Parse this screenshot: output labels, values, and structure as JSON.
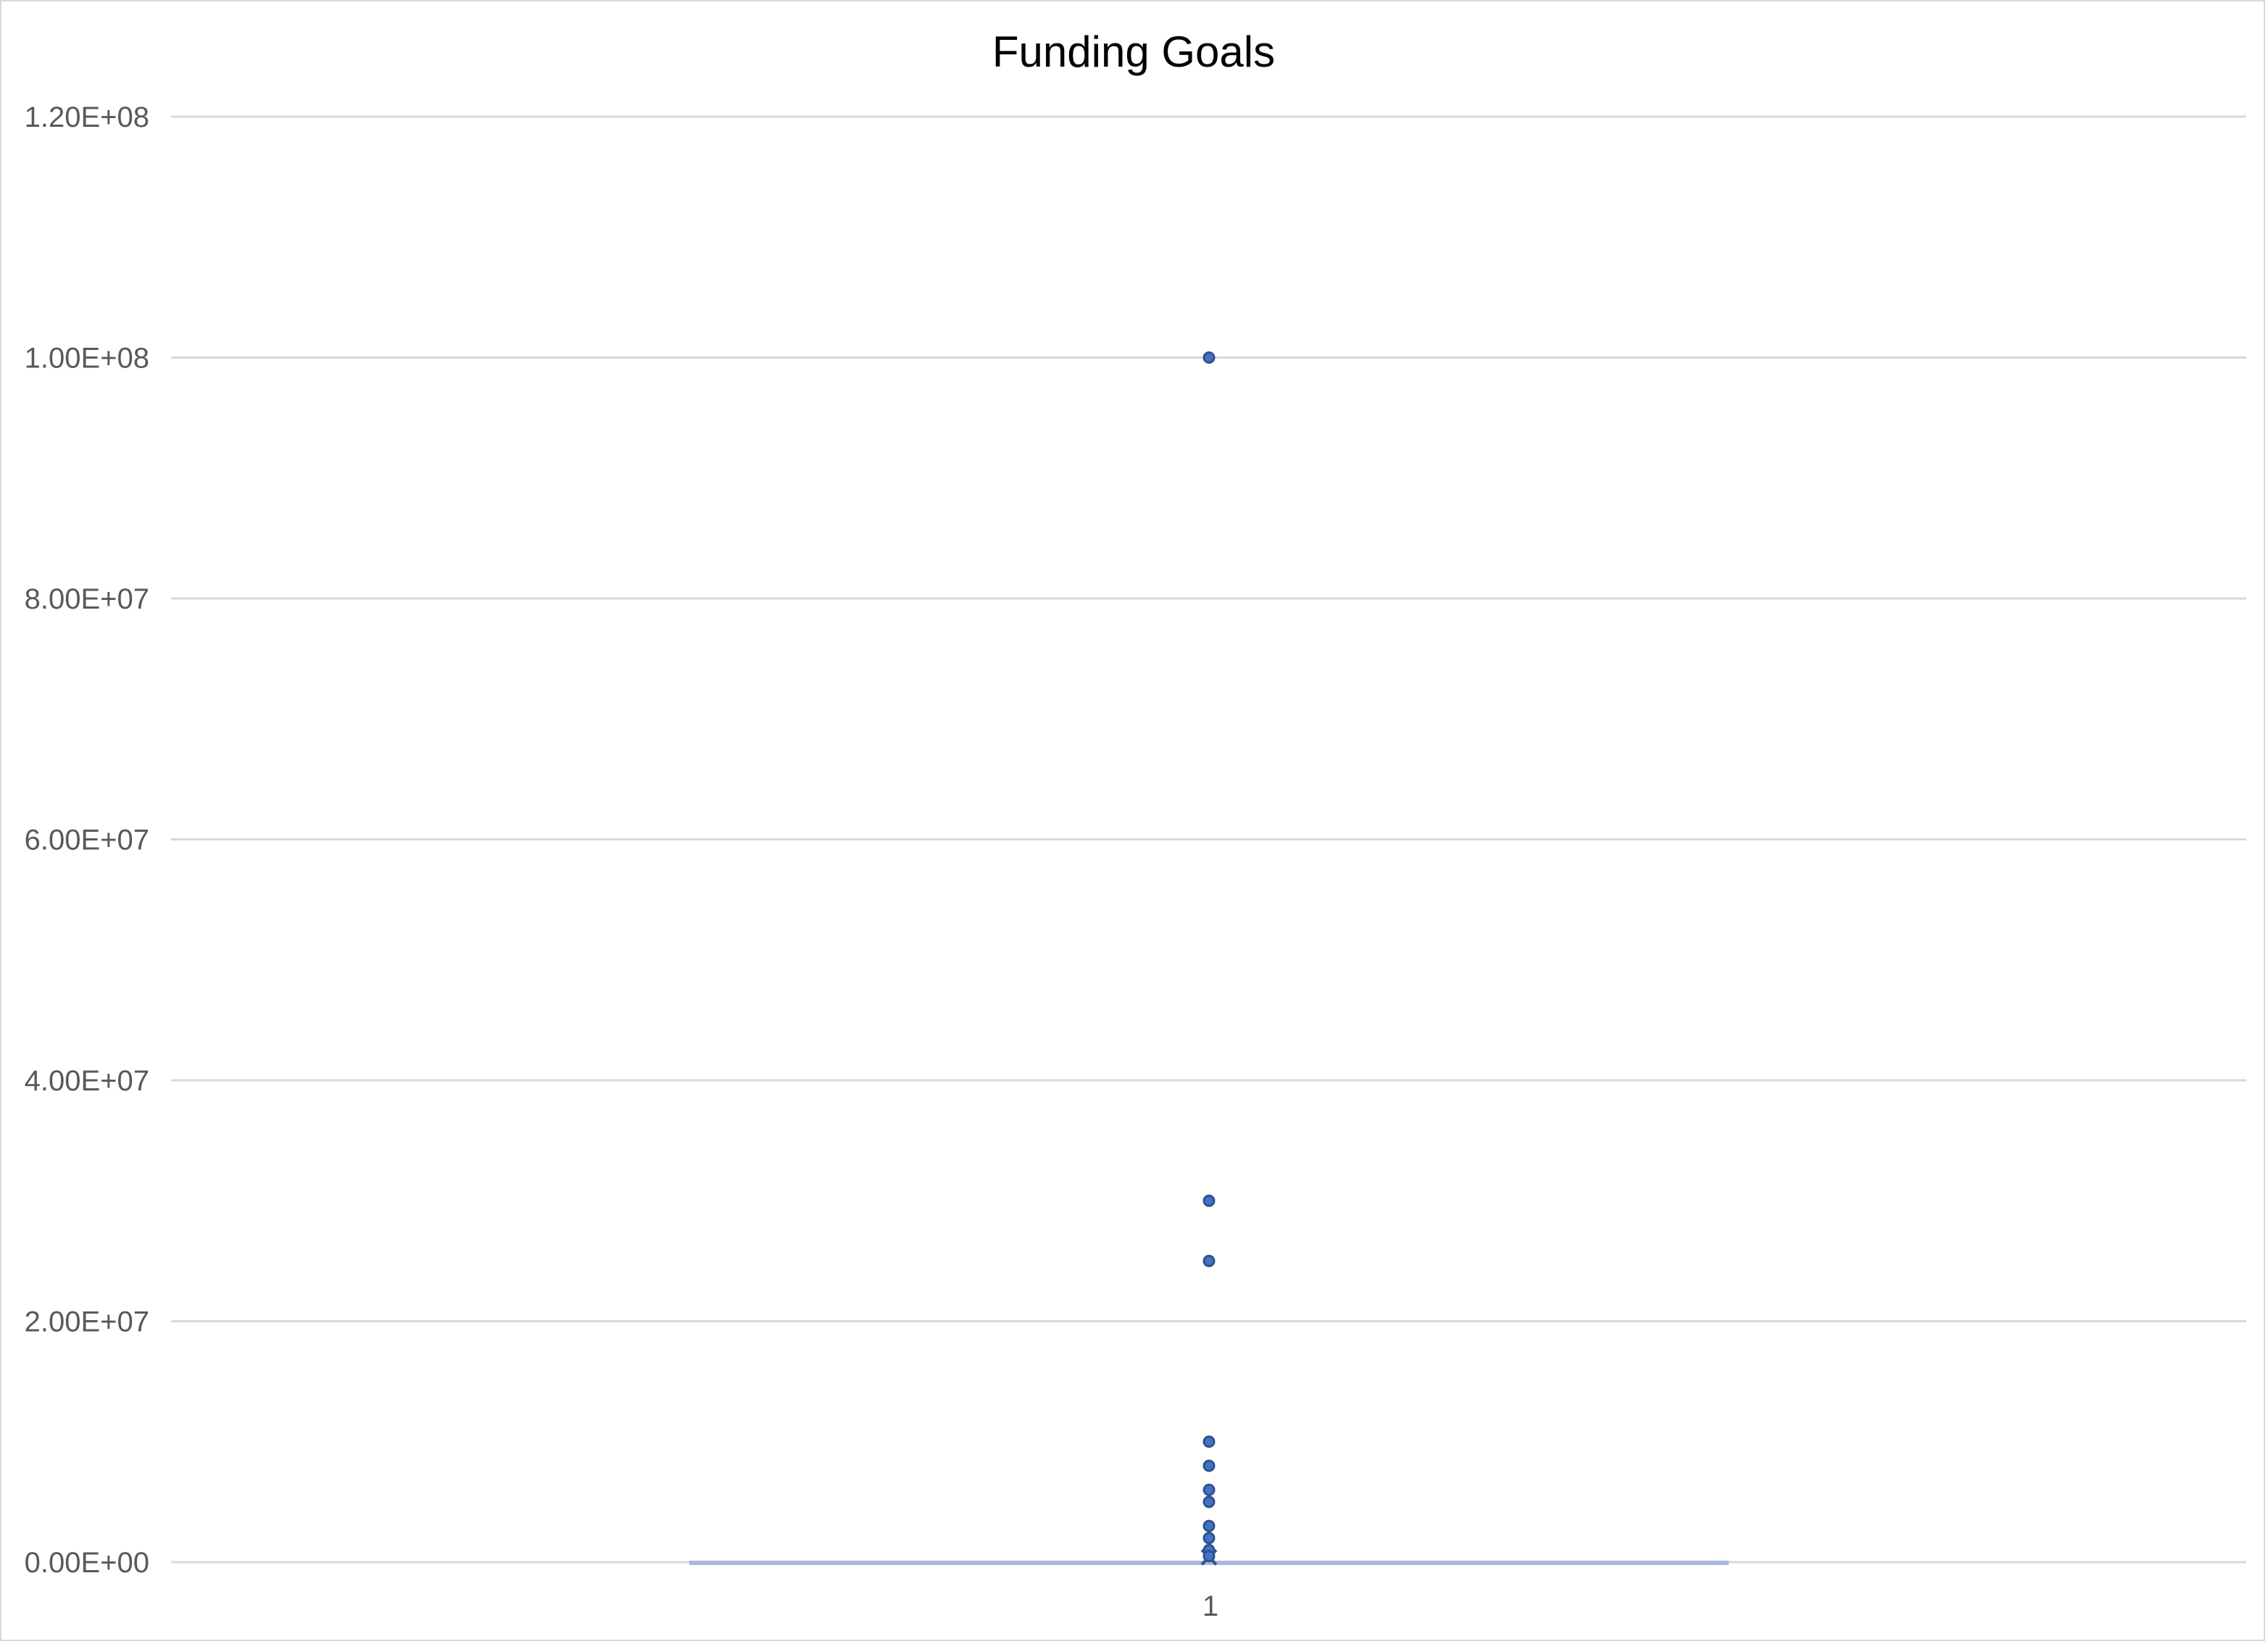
{
  "chart_data": {
    "type": "box",
    "title": "Funding Goals",
    "xlabel": "",
    "ylabel": "",
    "categories": [
      "1"
    ],
    "ylim": [
      0,
      120000000
    ],
    "yticks": [
      {
        "value": 0,
        "label": "0.00E+00"
      },
      {
        "value": 20000000,
        "label": "2.00E+07"
      },
      {
        "value": 40000000,
        "label": "4.00E+07"
      },
      {
        "value": 60000000,
        "label": "6.00E+07"
      },
      {
        "value": 80000000,
        "label": "8.00E+07"
      },
      {
        "value": 100000000,
        "label": "1.00E+08"
      },
      {
        "value": 120000000,
        "label": "1.20E+08"
      }
    ],
    "grid": true,
    "legend": "none",
    "box": {
      "min": 0,
      "q1": 0,
      "median": 0,
      "q3": 0,
      "max": 0,
      "mean": 400000
    },
    "outliers": [
      100000000,
      30000000,
      25000000,
      10000000,
      8000000,
      6000000,
      5000000,
      3000000,
      2000000,
      1000000,
      500000
    ],
    "colors": {
      "point": "#4472c4",
      "point_edge": "#2f528f",
      "grid": "#d9d9d9",
      "box": "#a5b9dc",
      "text": "#595959"
    }
  }
}
